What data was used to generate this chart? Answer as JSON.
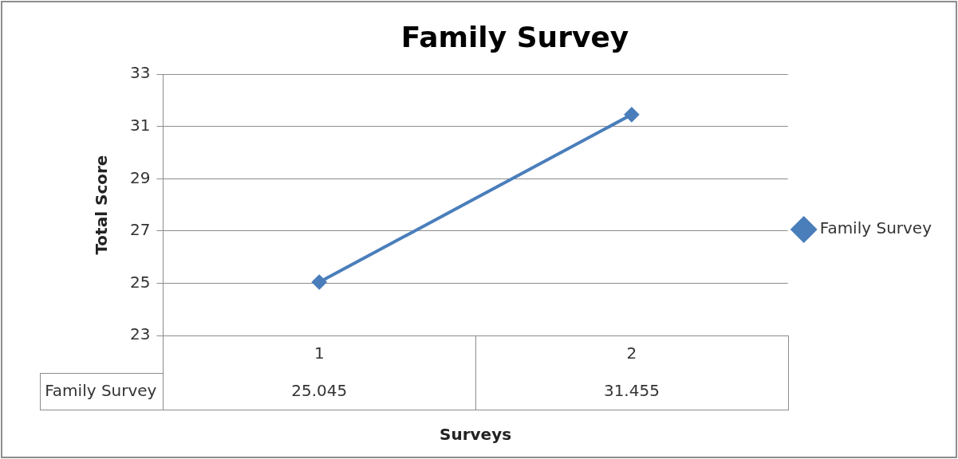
{
  "chart_data": {
    "type": "line",
    "title": "Family Survey",
    "xlabel": "Surveys",
    "ylabel": "Total Score",
    "categories": [
      "1",
      "2"
    ],
    "series": [
      {
        "name": "Family Survey",
        "color": "#4a7ebb",
        "values": [
          25.045,
          31.455
        ]
      }
    ],
    "ylim": [
      23,
      33
    ],
    "yticks": [
      23,
      25,
      27,
      29,
      31,
      33
    ],
    "grid": "y",
    "legend": "right",
    "marker": "diamond",
    "data_labels": true
  }
}
